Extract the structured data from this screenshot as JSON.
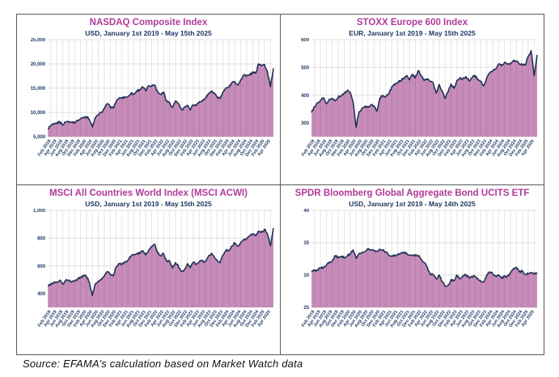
{
  "source_note": "Source: EFAMA’s calculation based on Market Watch data",
  "colors": {
    "title": "#b03a9a",
    "subtitle": "#1f3864",
    "line": "#223458",
    "fill": "#c88cba",
    "axis_label": "#1f3864",
    "gridline": "#e2e2e2",
    "panel_border": "#595959"
  },
  "chart_data": [
    {
      "type": "area",
      "title": "NASDAQ Composite Index",
      "subtitle": "USD, January 1st 2019 - May 15th 2025",
      "currency": "USD",
      "x_start": "Jan 2019",
      "x_interval": "monthly",
      "ylim": [
        5000,
        25000
      ],
      "y_ticks": {
        "values": [
          5000,
          10000,
          15000,
          20000,
          25000
        ],
        "labels": [
          "5,000",
          "10,000",
          "15,000",
          "20,000",
          "25,000"
        ]
      },
      "x_tick_labels": [
        "Feb 2019",
        "Apr 2019",
        "Jun 2019",
        "Aug 2019",
        "Oct 2019",
        "Dec 2019",
        "Feb 2020",
        "Apr 2020",
        "Jun 2020",
        "Aug 2020",
        "Oct 2020",
        "Dec 2020",
        "Feb 2021",
        "Apr 2021",
        "Jun 2021",
        "Aug 2021",
        "Oct 2021",
        "Dec 2021",
        "Feb 2022",
        "Apr 2022",
        "Jun 2022",
        "Aug 2022",
        "Oct 2022",
        "Dec 2022",
        "Feb 2023",
        "Apr 2023",
        "Jun 2023",
        "Aug 2023",
        "Oct 2023",
        "Dec 2023",
        "Feb 2024",
        "Apr 2024",
        "Jun 2024",
        "Aug 2024",
        "Oct 2024",
        "Dec 2024",
        "Feb 2025",
        "Apr 2025"
      ],
      "values": [
        6635,
        7282,
        7533,
        7729,
        8095,
        7453,
        8006,
        8175,
        7963,
        7999,
        8292,
        8665,
        8973,
        9151,
        8567,
        7000,
        8890,
        9490,
        10059,
        10745,
        11775,
        11168,
        10912,
        12199,
        12888,
        13071,
        13192,
        13247,
        13963,
        13749,
        14504,
        14673,
        15259,
        14449,
        15498,
        15538,
        15645,
        14240,
        13751,
        14221,
        12335,
        12081,
        11029,
        12391,
        11816,
        10576,
        10988,
        11468,
        10466,
        11585,
        11456,
        12222,
        12227,
        12935,
        13788,
        14346,
        14035,
        13219,
        12851,
        14226,
        15011,
        15164,
        16092,
        16379,
        15658,
        16735,
        17733,
        17599,
        17713,
        18189,
        18095,
        20000,
        19600,
        19900,
        18300,
        15300,
        19100
      ]
    },
    {
      "type": "area",
      "title": "STOXX Europe 600 Index",
      "subtitle": "EUR, January 1st 2019 - May 15th 2025",
      "currency": "EUR",
      "x_start": "Jan 2019",
      "x_interval": "monthly",
      "ylim": [
        250,
        600
      ],
      "y_ticks": {
        "values": [
          300,
          400,
          500,
          600
        ],
        "labels": [
          "300",
          "400",
          "500",
          "600"
        ]
      },
      "x_tick_labels": [
        "Feb 2019",
        "Apr 2019",
        "Jun 2019",
        "Aug 2019",
        "Oct 2019",
        "Dec 2019",
        "Feb 2020",
        "Apr 2020",
        "Jun 2020",
        "Aug 2020",
        "Oct 2020",
        "Dec 2020",
        "Feb 2021",
        "Apr 2021",
        "Jun 2021",
        "Aug 2021",
        "Oct 2021",
        "Dec 2021",
        "Feb 2022",
        "Apr 2022",
        "Jun 2022",
        "Aug 2022",
        "Oct 2022",
        "Dec 2022",
        "Feb 2023",
        "Apr 2023",
        "Jun 2023",
        "Aug 2023",
        "Oct 2023",
        "Dec 2023",
        "Feb 2024",
        "Apr 2024",
        "Jun 2024",
        "Aug 2024",
        "Oct 2024",
        "Dec 2024",
        "Feb 2025",
        "Apr 2025"
      ],
      "values": [
        337,
        358,
        372,
        379,
        391,
        369,
        385,
        387,
        379,
        393,
        398,
        407,
        416,
        410,
        375,
        284,
        340,
        350,
        360,
        356,
        366,
        361,
        342,
        389,
        399,
        395,
        404,
        429,
        437,
        446,
        452,
        461,
        471,
        455,
        475,
        462,
        488,
        469,
        453,
        456,
        450,
        443,
        407,
        438,
        415,
        388,
        412,
        440,
        425,
        453,
        461,
        458,
        467,
        452,
        462,
        471,
        458,
        450,
        433,
        461,
        479,
        486,
        494,
        512,
        505,
        518,
        511,
        512,
        525,
        523,
        512,
        510,
        508,
        539,
        560,
        470,
        545
      ]
    },
    {
      "type": "area",
      "title": "MSCI All Countries World Index (MSCI ACWI)",
      "subtitle": "USD, January 1st 2019 - May 15th 2025",
      "currency": "USD",
      "x_start": "Jan 2019",
      "x_interval": "monthly",
      "ylim": [
        300,
        1000
      ],
      "y_ticks": {
        "values": [
          400,
          600,
          800,
          1000
        ],
        "labels": [
          "400",
          "600",
          "800",
          "1,000"
        ]
      },
      "x_tick_labels": [
        "Feb 2019",
        "Apr 2019",
        "Jun 2019",
        "Aug 2019",
        "Oct 2019",
        "Dec 2019",
        "Feb 2020",
        "Apr 2020",
        "Jun 2020",
        "Aug 2020",
        "Oct 2020",
        "Dec 2020",
        "Feb 2021",
        "Apr 2021",
        "Jun 2021",
        "Aug 2021",
        "Oct 2021",
        "Dec 2021",
        "Feb 2022",
        "Apr 2022",
        "Jun 2022",
        "Aug 2022",
        "Oct 2022",
        "Dec 2022",
        "Feb 2023",
        "Apr 2023",
        "Jun 2023",
        "Aug 2023",
        "Oct 2023",
        "Dec 2023",
        "Feb 2024",
        "Apr 2024",
        "Jun 2024",
        "Aug 2024",
        "Oct 2024",
        "Dec 2024",
        "Feb 2025",
        "Apr 2025"
      ],
      "values": [
        455,
        467,
        478,
        483,
        496,
        467,
        494,
        495,
        484,
        493,
        505,
        517,
        531,
        525,
        483,
        385,
        469,
        490,
        500,
        526,
        558,
        540,
        527,
        590,
        617,
        611,
        626,
        642,
        670,
        680,
        688,
        692,
        709,
        679,
        714,
        740,
        755,
        693,
        674,
        689,
        634,
        635,
        583,
        623,
        597,
        560,
        571,
        615,
        586,
        627,
        609,
        627,
        636,
        629,
        664,
        688,
        669,
        641,
        622,
        678,
        710,
        712,
        742,
        766,
        741,
        771,
        787,
        799,
        816,
        830,
        816,
        850,
        841,
        864,
        830,
        745,
        873
      ]
    },
    {
      "type": "area",
      "title": "SPDR Bloomberg Global Aggregate Bond UCITS ETF",
      "subtitle": "USD, January 1st 2019 - May 14th 2025",
      "currency": "USD",
      "x_start": "Jan 2019",
      "x_interval": "monthly",
      "ylim": [
        25,
        40
      ],
      "y_ticks": {
        "values": [
          25,
          30,
          35,
          40
        ],
        "labels": [
          "25",
          "30",
          "35",
          "40"
        ]
      },
      "x_tick_labels": [
        "Feb 2019",
        "Apr 2019",
        "Jun 2019",
        "Aug 2019",
        "Oct 2019",
        "Dec 2019",
        "Feb 2020",
        "Apr 2020",
        "Jun 2020",
        "Aug 2020",
        "Oct 2020",
        "Dec 2020",
        "Feb 2021",
        "Apr 2021",
        "Jun 2021",
        "Aug 2021",
        "Oct 2021",
        "Dec 2021",
        "Feb 2022",
        "Apr 2022",
        "Jun 2022",
        "Aug 2022",
        "Oct 2022",
        "Dec 2022",
        "Feb 2023",
        "Apr 2023",
        "Jun 2023",
        "Aug 2023",
        "Oct 2023",
        "Dec 2023",
        "Feb 2024",
        "Apr 2024",
        "Jun 2024",
        "Aug 2024",
        "Oct 2024",
        "Dec 2024",
        "Feb 2025",
        "Apr 2025"
      ],
      "values": [
        30.5,
        30.7,
        30.8,
        31.1,
        31.1,
        31.5,
        32.0,
        32.2,
        33.0,
        32.7,
        32.9,
        32.7,
        32.9,
        33.3,
        33.9,
        32.6,
        33.3,
        33.5,
        33.6,
        34.0,
        33.9,
        33.8,
        33.7,
        34.0,
        33.9,
        33.6,
        33.1,
        32.9,
        33.0,
        33.2,
        33.3,
        33.5,
        33.4,
        33.1,
        33.0,
        33.1,
        33.0,
        32.4,
        31.9,
        31.2,
        30.1,
        30.1,
        29.4,
        30.0,
        29.0,
        28.3,
        28.4,
        29.3,
        29.1,
        30.0,
        29.4,
        29.9,
        30.0,
        29.6,
        29.7,
        29.8,
        29.5,
        29.0,
        28.9,
        30.0,
        30.5,
        30.2,
        29.9,
        30.0,
        29.5,
        29.8,
        29.8,
        30.4,
        31.0,
        31.2,
        30.5,
        30.6,
        30.1,
        30.2,
        30.4,
        30.2,
        30.4
      ]
    }
  ]
}
